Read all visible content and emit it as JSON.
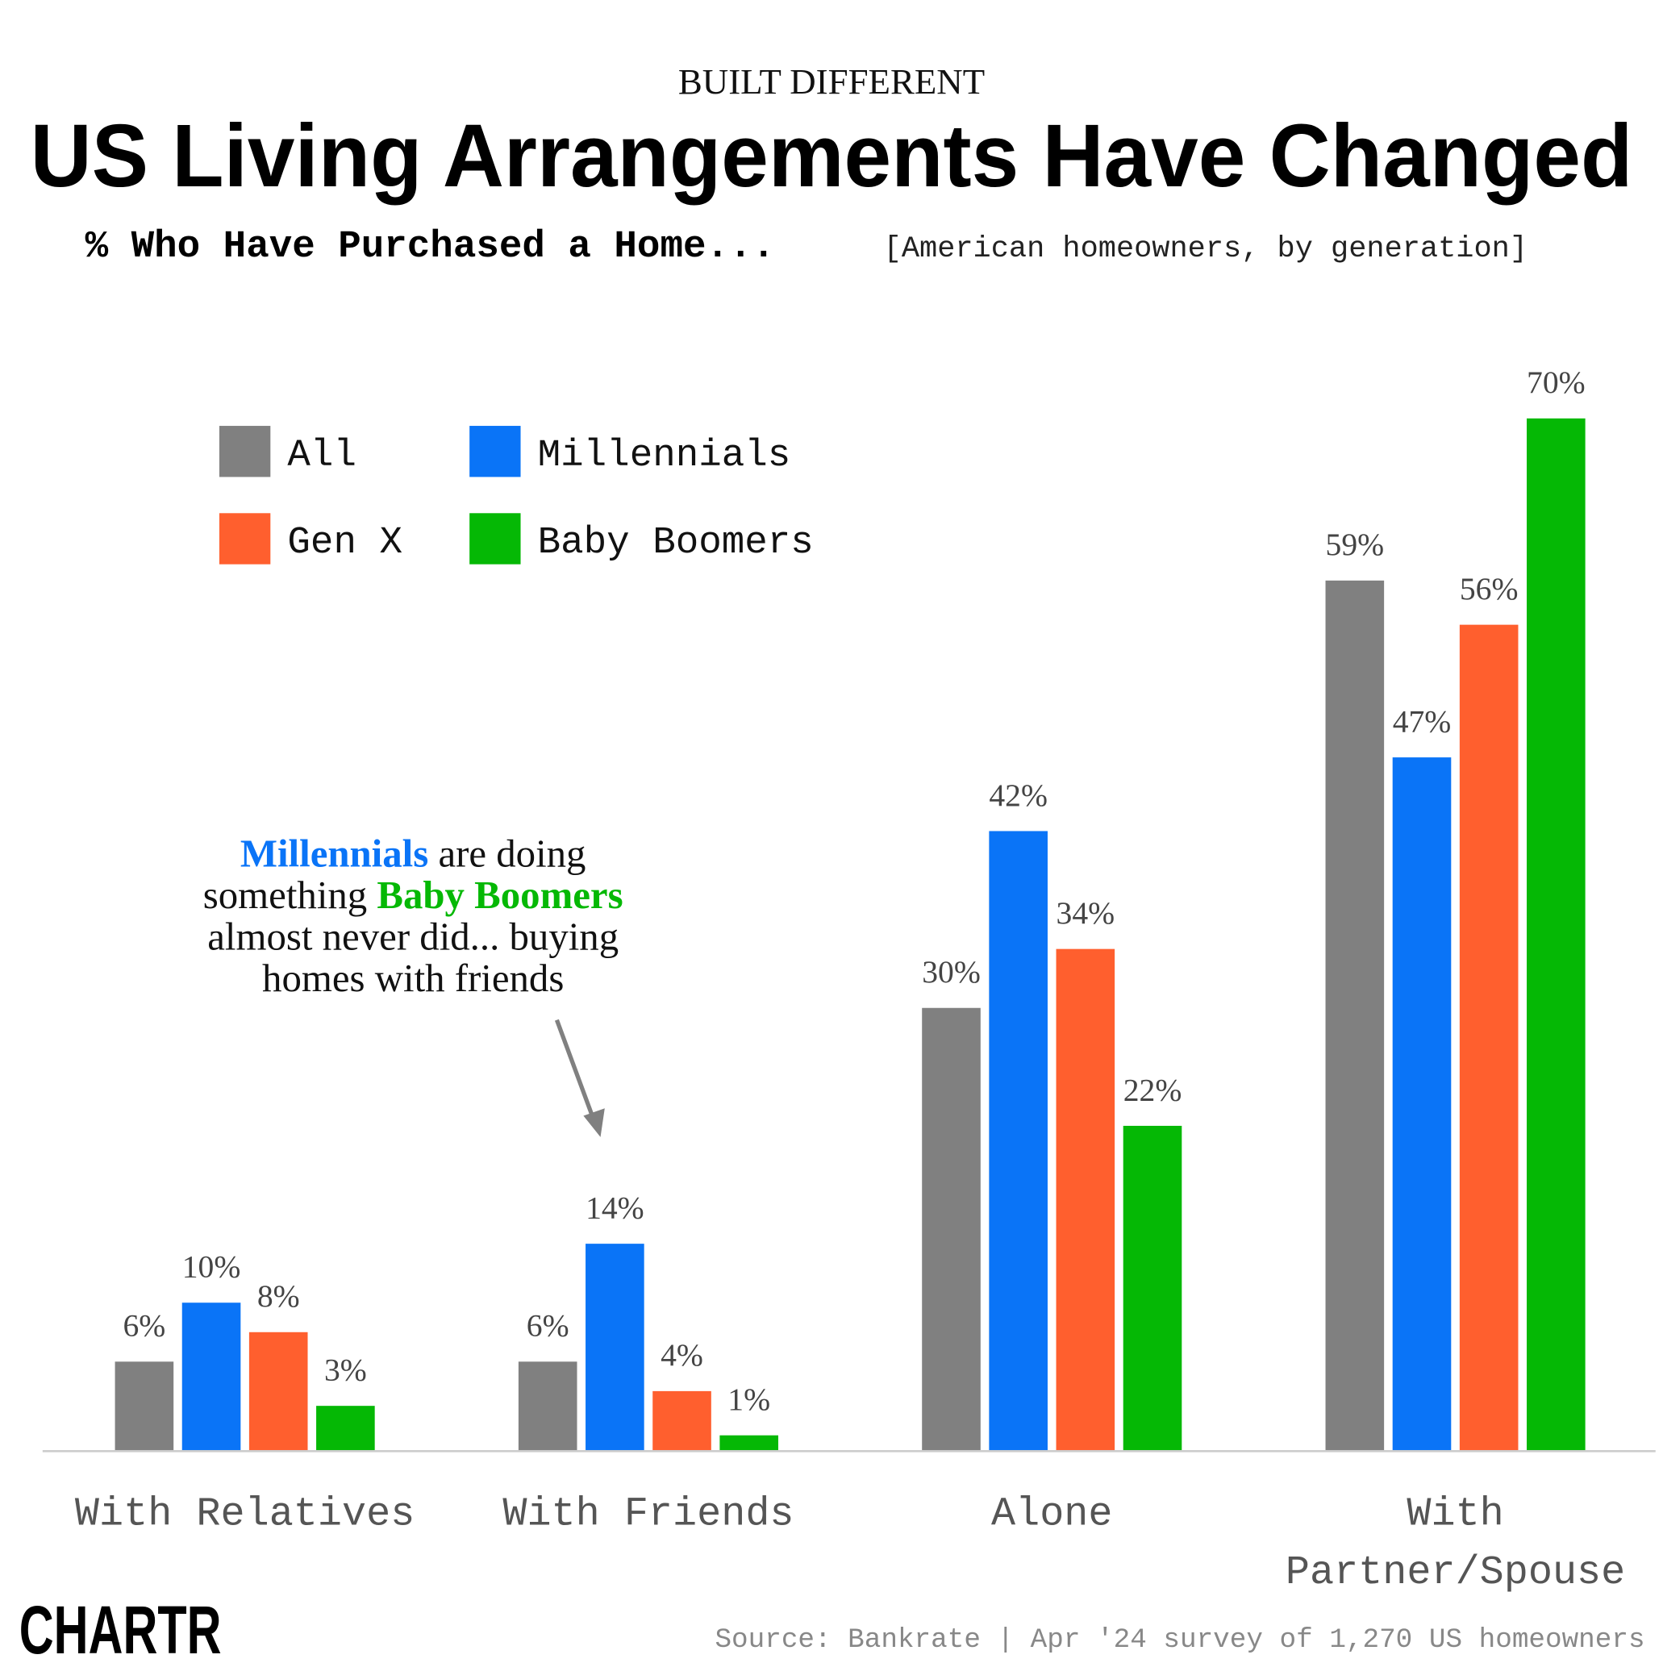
{
  "chart_data": {
    "type": "bar",
    "kicker": "BUILT DIFFERENT",
    "title": "US Living Arrangements Have Changed",
    "subtitle": "% Who Have Purchased a Home...",
    "subtitle_note": "[American homeowners, by generation]",
    "categories": [
      "With Relatives",
      "With Friends",
      "Alone",
      "With Partner/Spouse"
    ],
    "series": [
      {
        "name": "All",
        "color": "#808080",
        "values": [
          6,
          6,
          30,
          59
        ],
        "value_labels": [
          "6%",
          "6%",
          "30%",
          "59%"
        ]
      },
      {
        "name": "Millennials",
        "color": "#0a74f7",
        "values": [
          10,
          14,
          42,
          47
        ],
        "value_labels": [
          "10%",
          "14%",
          "42%",
          "47%"
        ]
      },
      {
        "name": "Gen X",
        "color": "#ff5f2e",
        "values": [
          8,
          4,
          34,
          56
        ],
        "value_labels": [
          "8%",
          "4%",
          "34%",
          "56%"
        ]
      },
      {
        "name": "Baby Boomers",
        "color": "#05b805",
        "values": [
          3,
          1,
          22,
          70
        ],
        "value_labels": [
          "3%",
          "1%",
          "22%",
          "70%"
        ]
      }
    ],
    "annotation": [
      "Millennials are doing",
      "something Baby Boomers",
      "almost never did... buying",
      "homes with friends"
    ],
    "source": "Source: Bankrate | Apr '24 survey of 1,270 US homeowners",
    "logo": "CHARTR"
  }
}
